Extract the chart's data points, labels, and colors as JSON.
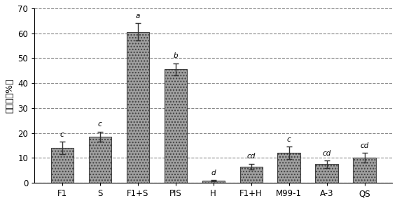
{
  "categories": [
    "F1",
    "S",
    "F1+S",
    "PIS",
    "H",
    "F1+H",
    "M99-1",
    "A-3",
    "QS"
  ],
  "values": [
    14.0,
    18.5,
    60.5,
    45.5,
    0.8,
    6.5,
    12.0,
    7.5,
    10.0
  ],
  "errors": [
    2.5,
    2.0,
    3.5,
    2.5,
    0.3,
    1.2,
    2.5,
    1.5,
    2.0
  ],
  "letters": [
    "c",
    "c",
    "a",
    "b",
    "d",
    "cd",
    "c",
    "cd",
    "cd"
  ],
  "bar_color": "#a0a0a0",
  "bar_edge_color": "#404040",
  "ylabel": "诱捉率（%）",
  "ylim": [
    0,
    70
  ],
  "yticks": [
    0,
    10,
    20,
    30,
    40,
    50,
    60,
    70
  ],
  "grid_color": "#888888",
  "background_color": "#ffffff",
  "bar_width": 0.6,
  "figsize": [
    5.67,
    2.91
  ],
  "dpi": 100
}
